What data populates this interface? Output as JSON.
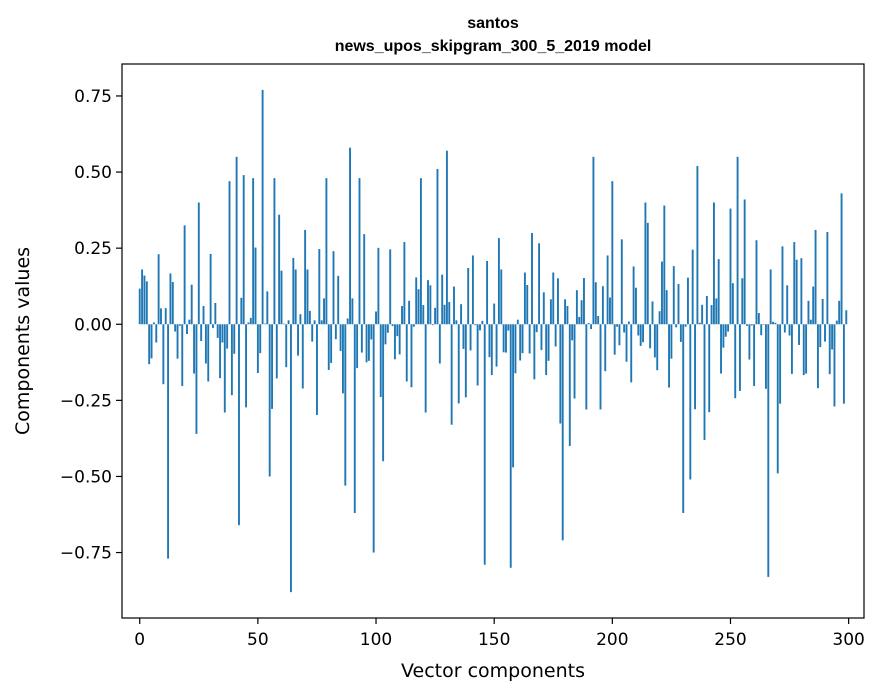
{
  "chart_data": {
    "type": "bar",
    "title_line1": "santos",
    "title_line2": "news_upos_skipgram_300_5_2019 model",
    "xlabel": "Vector components",
    "ylabel": "Components values",
    "xlim": [
      -7.5,
      306.5
    ],
    "ylim": [
      -0.965,
      0.855
    ],
    "x_ticks": [
      0,
      50,
      100,
      150,
      200,
      250,
      300
    ],
    "x_tick_labels": [
      "0",
      "50",
      "100",
      "150",
      "200",
      "250",
      "300"
    ],
    "y_ticks": [
      0.75,
      0.5,
      0.25,
      0.0,
      -0.25,
      -0.5,
      -0.75
    ],
    "y_tick_labels": [
      "0.75",
      "0.50",
      "0.25",
      "0.00",
      "−0.25",
      "−0.50",
      "−0.75"
    ],
    "bar_color": "#1f77b4",
    "highlights": {
      "1": 0.18,
      "12": -0.77,
      "22": 0.13,
      "24": -0.36,
      "25": 0.4,
      "32": 0.07,
      "36": -0.29,
      "38": 0.47,
      "41": 0.55,
      "42": -0.66,
      "44": 0.49,
      "48": 0.48,
      "52": 0.77,
      "55": -0.5,
      "57": 0.48,
      "59": 0.36,
      "64": -0.88,
      "66": 0.18,
      "70": 0.31,
      "79": 0.48,
      "82": 0.24,
      "87": -0.53,
      "89": 0.58,
      "91": -0.62,
      "93": 0.48,
      "99": -0.75,
      "103": -0.45,
      "119": 0.48,
      "126": 0.51,
      "130": 0.57,
      "135": -0.26,
      "146": -0.79,
      "153": 0.18,
      "157": -0.8,
      "158": -0.47,
      "166": 0.3,
      "179": -0.71,
      "182": -0.4,
      "192": 0.55,
      "200": 0.47,
      "214": 0.4,
      "222": 0.39,
      "230": -0.62,
      "233": -0.51,
      "236": 0.52,
      "239": -0.38,
      "243": 0.4,
      "250": 0.38,
      "253": 0.55,
      "256": 0.41,
      "266": -0.83,
      "270": -0.49,
      "277": 0.27,
      "286": 0.31,
      "294": -0.27,
      "297": 0.43
    }
  }
}
